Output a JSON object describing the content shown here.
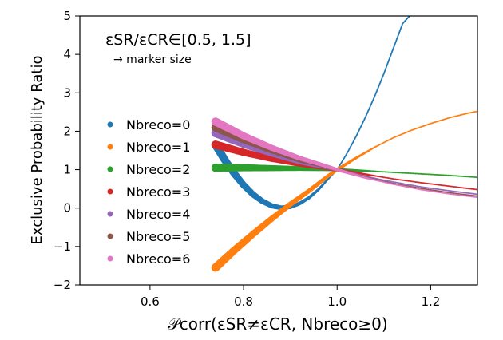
{
  "chart_data": {
    "type": "scatter",
    "title": "",
    "xlabel": "𝒫corr(εSR≠εCR, Nbreco≥0)",
    "ylabel": "Exclusive Probability Ratio",
    "xlim": [
      0.45,
      1.3
    ],
    "ylim": [
      -2,
      5
    ],
    "xticks": [
      0.6,
      0.8,
      1.0,
      1.2
    ],
    "xtick_labels": [
      "0.6",
      "0.8",
      "1.0",
      "1.2"
    ],
    "yticks": [
      -2,
      -1,
      0,
      1,
      2,
      3,
      4,
      5
    ],
    "ytick_labels": [
      "−2",
      "−1",
      "0",
      "1",
      "2",
      "3",
      "4",
      "5"
    ],
    "grid": false,
    "legend_placement": "center-left",
    "annotation": {
      "line1": "εSR/εCR∈[0.5, 1.5]",
      "line2": "→ marker size"
    },
    "x_range_points": [
      0.74,
      1.3
    ],
    "series": [
      {
        "name": "Nbreco=0",
        "color": "#1f77b4",
        "x": [
          0.74,
          0.76,
          0.78,
          0.8,
          0.82,
          0.84,
          0.86,
          0.88,
          0.9,
          0.92,
          0.94,
          0.96,
          0.98,
          1.0,
          1.02,
          1.04,
          1.06,
          1.08,
          1.1,
          1.12,
          1.14,
          1.155
        ],
        "y": [
          1.65,
          1.25,
          0.9,
          0.6,
          0.36,
          0.18,
          0.06,
          0.01,
          0.03,
          0.12,
          0.27,
          0.48,
          0.75,
          1.0,
          1.4,
          1.85,
          2.35,
          2.9,
          3.5,
          4.15,
          4.8,
          5.0
        ]
      },
      {
        "name": "Nbreco=1",
        "color": "#ff7f0e",
        "x": [
          0.74,
          0.78,
          0.82,
          0.86,
          0.9,
          0.94,
          0.98,
          1.0,
          1.04,
          1.08,
          1.12,
          1.16,
          1.2,
          1.24,
          1.28,
          1.3
        ],
        "y": [
          -1.55,
          -1.1,
          -0.68,
          -0.28,
          0.1,
          0.45,
          0.83,
          1.0,
          1.3,
          1.58,
          1.83,
          2.03,
          2.2,
          2.35,
          2.47,
          2.52
        ]
      },
      {
        "name": "Nbreco=2",
        "color": "#2ca02c",
        "x": [
          0.74,
          0.8,
          0.86,
          0.92,
          0.98,
          1.0,
          1.06,
          1.12,
          1.18,
          1.24,
          1.3
        ],
        "y": [
          1.05,
          1.05,
          1.04,
          1.03,
          1.01,
          1.0,
          0.97,
          0.93,
          0.89,
          0.85,
          0.8
        ]
      },
      {
        "name": "Nbreco=3",
        "color": "#d62728",
        "x": [
          0.74,
          0.8,
          0.86,
          0.92,
          0.98,
          1.0,
          1.06,
          1.12,
          1.18,
          1.24,
          1.3
        ],
        "y": [
          1.65,
          1.45,
          1.28,
          1.14,
          1.03,
          1.0,
          0.88,
          0.76,
          0.66,
          0.57,
          0.48
        ]
      },
      {
        "name": "Nbreco=4",
        "color": "#9467bd",
        "x": [
          0.74,
          0.8,
          0.86,
          0.92,
          0.98,
          1.0,
          1.06,
          1.12,
          1.18,
          1.24,
          1.3
        ],
        "y": [
          1.95,
          1.66,
          1.42,
          1.2,
          1.05,
          1.0,
          0.82,
          0.68,
          0.55,
          0.45,
          0.36
        ]
      },
      {
        "name": "Nbreco=5",
        "color": "#8c564b",
        "x": [
          0.74,
          0.8,
          0.86,
          0.92,
          0.98,
          1.0,
          1.06,
          1.12,
          1.18,
          1.24,
          1.3
        ],
        "y": [
          2.1,
          1.78,
          1.5,
          1.25,
          1.07,
          1.0,
          0.8,
          0.64,
          0.51,
          0.4,
          0.31
        ]
      },
      {
        "name": "Nbreco=6",
        "color": "#e377c2",
        "x": [
          0.74,
          0.8,
          0.86,
          0.92,
          0.98,
          1.0,
          1.06,
          1.12,
          1.18,
          1.24,
          1.3
        ],
        "y": [
          2.25,
          1.88,
          1.57,
          1.3,
          1.08,
          1.0,
          0.79,
          0.62,
          0.48,
          0.37,
          0.28
        ]
      }
    ]
  }
}
